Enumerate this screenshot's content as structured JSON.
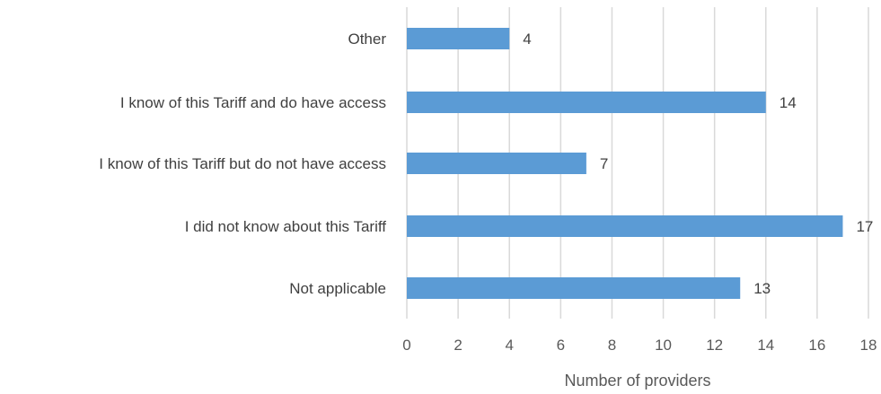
{
  "chart_data": {
    "type": "bar",
    "orientation": "horizontal",
    "categories": [
      "Other",
      "I know of this Tariff and do have access",
      "I know of this Tariff but do not have access",
      "I did not know about this Tariff",
      "Not applicable"
    ],
    "values": [
      4,
      14,
      7,
      17,
      13
    ],
    "xlabel": "Number of providers",
    "xlim": [
      0,
      18
    ],
    "xticks": [
      0,
      2,
      4,
      6,
      8,
      10,
      12,
      14,
      16,
      18
    ],
    "grid": "vertical",
    "bar_color": "#5b9bd5",
    "data_labels": true
  }
}
